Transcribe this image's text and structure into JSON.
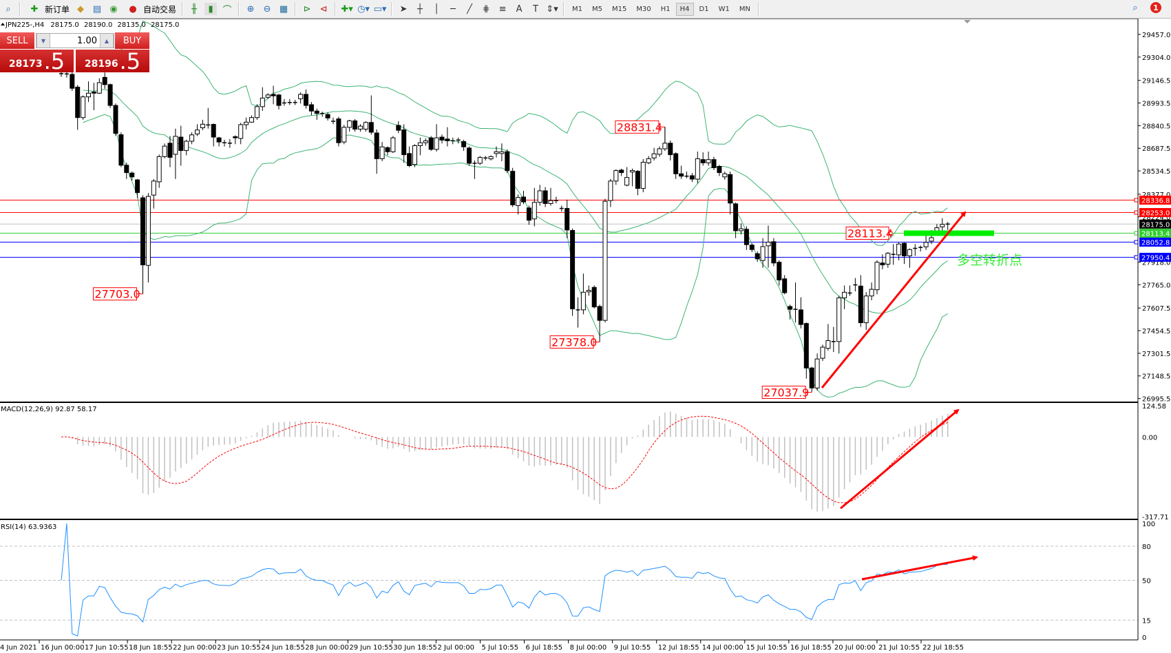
{
  "toolbar": {
    "new_order": "新订单",
    "auto_trading": "自动交易",
    "timeframes": [
      "M1",
      "M5",
      "M15",
      "M30",
      "H1",
      "H4",
      "D1",
      "W1",
      "MN"
    ],
    "active_timeframe": "H4",
    "notification_count": "1",
    "icons": [
      "zoom-icon",
      "new-order-icon",
      "market-watch-icon",
      "navigator-icon",
      "signal-icon",
      "auto-trading-icon",
      "bar-chart-icon",
      "candlestick-icon",
      "line-chart-icon",
      "zoom-in-icon",
      "zoom-out-icon",
      "tile-windows-icon",
      "chart-shift-icon",
      "autoscroll-icon",
      "indicators-icon",
      "periods-icon",
      "templates-icon",
      "cursor-icon",
      "crosshair-icon",
      "vertical-line-icon",
      "horizontal-line-icon",
      "trendline-icon",
      "fibonacci-icon",
      "fibo-fan-icon",
      "text-icon",
      "text-label-icon",
      "arrows-icon",
      "search-icon",
      "notification-icon"
    ]
  },
  "chart": {
    "symbol": "JPN225-,H4",
    "open": "28175.0",
    "high": "28190.0",
    "low": "28135.0",
    "close": "28175.0"
  },
  "trade_panel": {
    "sell_label": "SELL",
    "buy_label": "BUY",
    "volume": "1.00",
    "sell_price_main": "28173",
    "sell_price_frac": ".5",
    "buy_price_main": "28196",
    "buy_price_frac": ".5"
  },
  "chart_data": {
    "type": "candlestick",
    "symbol": "JPN225-",
    "timeframe": "H4",
    "colors": {
      "bull_body": "#ffffff",
      "bear_body": "#000000",
      "bands": "#3cb371",
      "rsi": "#1e90ff",
      "macd_hist": "#c0c0c0",
      "macd_signal": "#ff0000",
      "arrow": "#ff0000",
      "annotation": "#ff0000"
    },
    "candles": [
      [
        29192,
        29215,
        29170,
        29187
      ],
      [
        29187,
        29230,
        29165,
        29190
      ],
      [
        29187,
        29200,
        29075,
        29093
      ],
      [
        29101,
        29115,
        28812,
        28895
      ],
      [
        28895,
        29045,
        28880,
        29035
      ],
      [
        29035,
        29140,
        29000,
        29060
      ],
      [
        29068,
        29130,
        28945,
        29060
      ],
      [
        29060,
        29160,
        29055,
        29131
      ],
      [
        29167,
        29200,
        29090,
        29118
      ],
      [
        29118,
        29125,
        28960,
        28977
      ],
      [
        28977,
        28990,
        28770,
        28788
      ],
      [
        28779,
        28795,
        28560,
        28573
      ],
      [
        28573,
        28590,
        28480,
        28523
      ],
      [
        28520,
        28530,
        28470,
        28494
      ],
      [
        28474,
        28480,
        28350,
        28388
      ],
      [
        28353,
        28370,
        27703,
        27899
      ],
      [
        27896,
        28385,
        27780,
        28362
      ],
      [
        28371,
        28480,
        28280,
        28466
      ],
      [
        28461,
        28645,
        28420,
        28631
      ],
      [
        28631,
        28720,
        28620,
        28702
      ],
      [
        28722,
        28770,
        28560,
        28626
      ],
      [
        28647,
        28820,
        28480,
        28768
      ],
      [
        28763,
        28840,
        28570,
        28672
      ],
      [
        28672,
        28745,
        28640,
        28735
      ],
      [
        28735,
        28795,
        28715,
        28778
      ],
      [
        28784,
        28850,
        28770,
        28811
      ],
      [
        28826,
        28880,
        28810,
        28850
      ],
      [
        28845,
        28960,
        28820,
        28845
      ],
      [
        28849,
        28855,
        28700,
        28763
      ],
      [
        28758,
        28765,
        28700,
        28730
      ],
      [
        28725,
        28745,
        28700,
        28725
      ],
      [
        28722,
        28750,
        28690,
        28722
      ],
      [
        28766,
        28775,
        28715,
        28758
      ],
      [
        28754,
        28860,
        28715,
        28847
      ],
      [
        28847,
        28895,
        28815,
        28864
      ],
      [
        28864,
        28910,
        28860,
        28895
      ],
      [
        28895,
        28985,
        28880,
        28969
      ],
      [
        28969,
        29100,
        28940,
        29027
      ],
      [
        29032,
        29060,
        29020,
        29048
      ],
      [
        29052,
        29110,
        28985,
        29042
      ],
      [
        29048,
        29055,
        28950,
        28977
      ],
      [
        28994,
        29020,
        28975,
        28994
      ],
      [
        28997,
        29020,
        28980,
        28997
      ],
      [
        28997,
        29015,
        28980,
        28997
      ],
      [
        29022,
        29065,
        28990,
        29052
      ],
      [
        29052,
        29085,
        28955,
        28977
      ],
      [
        28982,
        29000,
        28910,
        28939
      ],
      [
        28939,
        28955,
        28880,
        28923
      ],
      [
        28923,
        28935,
        28900,
        28923
      ],
      [
        28916,
        28930,
        28875,
        28892
      ],
      [
        28870,
        28895,
        28850,
        28870
      ],
      [
        28886,
        28900,
        28700,
        28725
      ],
      [
        28730,
        28845,
        28715,
        28829
      ],
      [
        28829,
        28880,
        28800,
        28873
      ],
      [
        28873,
        28885,
        28800,
        28817
      ],
      [
        28817,
        28850,
        28800,
        28837
      ],
      [
        28817,
        28870,
        28800,
        28862
      ],
      [
        28862,
        29045,
        28780,
        28796
      ],
      [
        28791,
        28815,
        28515,
        28617
      ],
      [
        28617,
        28730,
        28600,
        28697
      ],
      [
        28692,
        28700,
        28640,
        28664
      ],
      [
        28664,
        28770,
        28655,
        28758
      ],
      [
        28842,
        28870,
        28790,
        28809
      ],
      [
        28812,
        28850,
        28590,
        28644
      ],
      [
        28652,
        28700,
        28560,
        28570
      ],
      [
        28578,
        28715,
        28560,
        28705
      ],
      [
        28705,
        28760,
        28640,
        28725
      ],
      [
        28725,
        28755,
        28705,
        28738
      ],
      [
        28758,
        28770,
        28670,
        28680
      ],
      [
        28680,
        28850,
        28665,
        28758
      ],
      [
        28763,
        28780,
        28720,
        28743
      ],
      [
        28750,
        28830,
        28700,
        28738
      ],
      [
        28738,
        28760,
        28715,
        28738
      ],
      [
        28743,
        28760,
        28720,
        28738
      ],
      [
        28733,
        28745,
        28670,
        28697
      ],
      [
        28689,
        28700,
        28570,
        28586
      ],
      [
        28586,
        28605,
        28480,
        28586
      ],
      [
        28586,
        28635,
        28575,
        28626
      ],
      [
        28622,
        28635,
        28605,
        28622
      ],
      [
        28616,
        28640,
        28605,
        28631
      ],
      [
        28652,
        28700,
        28625,
        28664
      ],
      [
        28652,
        28720,
        28600,
        28664
      ],
      [
        28664,
        28680,
        28520,
        28536
      ],
      [
        28532,
        28555,
        28290,
        28305
      ],
      [
        28300,
        28375,
        28240,
        28355
      ],
      [
        28358,
        28400,
        28310,
        28325
      ],
      [
        28284,
        28300,
        28170,
        28201
      ],
      [
        28210,
        28420,
        28160,
        28322
      ],
      [
        28322,
        28440,
        28300,
        28400
      ],
      [
        28400,
        28425,
        28290,
        28314
      ],
      [
        28314,
        28420,
        28300,
        28334
      ],
      [
        28334,
        28360,
        28315,
        28334
      ],
      [
        28281,
        28300,
        28260,
        28281
      ],
      [
        28281,
        28340,
        28080,
        28135
      ],
      [
        28132,
        28145,
        27555,
        27602
      ],
      [
        27595,
        27680,
        27475,
        27595
      ],
      [
        27595,
        27840,
        27565,
        27714
      ],
      [
        27717,
        27760,
        27690,
        27727
      ],
      [
        27747,
        27760,
        27605,
        27615
      ],
      [
        27618,
        27630,
        27378,
        27524
      ],
      [
        27524,
        28345,
        27510,
        28329
      ],
      [
        28334,
        28480,
        28290,
        28466
      ],
      [
        28466,
        28545,
        28440,
        28537
      ],
      [
        28540,
        28550,
        28500,
        28523
      ],
      [
        28438,
        28560,
        28430,
        28490
      ],
      [
        28527,
        28550,
        28430,
        28537
      ],
      [
        28532,
        28540,
        28370,
        28416
      ],
      [
        28416,
        28615,
        28390,
        28593
      ],
      [
        28589,
        28635,
        28580,
        28617
      ],
      [
        28622,
        28690,
        28605,
        28650
      ],
      [
        28647,
        28700,
        28630,
        28684
      ],
      [
        28684,
        28831.4,
        28670,
        28722
      ],
      [
        28722,
        28740,
        28605,
        28644
      ],
      [
        28651,
        28660,
        28480,
        28515
      ],
      [
        28515,
        28570,
        28480,
        28499
      ],
      [
        28499,
        28530,
        28485,
        28499
      ],
      [
        28502,
        28520,
        28460,
        28479
      ],
      [
        28479,
        28665,
        28450,
        28617
      ],
      [
        28611,
        28660,
        28570,
        28589
      ],
      [
        28589,
        28665,
        28570,
        28611
      ],
      [
        28611,
        28630,
        28540,
        28556
      ],
      [
        28565,
        28575,
        28500,
        28523
      ],
      [
        28494,
        28530,
        28475,
        28515
      ],
      [
        28510,
        28530,
        28240,
        28317
      ],
      [
        28312,
        28320,
        28080,
        28130
      ],
      [
        28130,
        28180,
        28105,
        28143
      ],
      [
        28140,
        28160,
        28000,
        28036
      ],
      [
        28033,
        28045,
        27985,
        28003
      ],
      [
        27975,
        27990,
        27920,
        27940
      ],
      [
        27929,
        28080,
        27880,
        28023
      ],
      [
        28028,
        28165,
        27880,
        28053
      ],
      [
        28056,
        28080,
        27890,
        27912
      ],
      [
        27917,
        27930,
        27760,
        27797
      ],
      [
        27805,
        27830,
        27700,
        27711
      ],
      [
        27618,
        27630,
        27530,
        27599
      ],
      [
        27599,
        27780,
        27510,
        27599
      ],
      [
        27595,
        27680,
        27470,
        27496
      ],
      [
        27503,
        27510,
        27130,
        27202
      ],
      [
        27202,
        27210,
        27037.9,
        27067
      ],
      [
        27067,
        27300,
        27050,
        27263
      ],
      [
        27268,
        27360,
        27250,
        27343
      ],
      [
        27335,
        27500,
        27320,
        27387
      ],
      [
        27381,
        27480,
        27310,
        27381
      ],
      [
        27381,
        27690,
        27300,
        27676
      ],
      [
        27676,
        27760,
        27600,
        27714
      ],
      [
        27709,
        27760,
        27690,
        27709
      ],
      [
        27764,
        27810,
        27720,
        27764
      ],
      [
        27756,
        27830,
        27480,
        27508
      ],
      [
        27508,
        27715,
        27460,
        27689
      ],
      [
        27689,
        27780,
        27660,
        27734
      ],
      [
        27731,
        27930,
        27700,
        27917
      ],
      [
        27912,
        27970,
        27870,
        27899
      ],
      [
        27904,
        27985,
        27880,
        27978
      ],
      [
        27970,
        28040,
        27900,
        27970
      ],
      [
        27967,
        28050,
        27930,
        28040
      ],
      [
        28045,
        28050,
        27905,
        27960
      ],
      [
        27960,
        28010,
        27880,
        28003
      ],
      [
        28011,
        28040,
        27960,
        28011
      ],
      [
        28017,
        28030,
        27990,
        28017
      ],
      [
        28021,
        28095,
        28000,
        28052
      ],
      [
        28060,
        28135,
        28040,
        28083
      ],
      [
        28129,
        28175,
        28120,
        28150
      ],
      [
        28156,
        28215,
        28120,
        28173
      ],
      [
        28175,
        28190,
        28135,
        28175
      ]
    ],
    "price_axis": {
      "ylim": [
        26995.5,
        29457.0
      ],
      "ticks": [
        "29457.0",
        "29304.0",
        "29146.5",
        "28993.5",
        "28840.5",
        "28687.5",
        "28534.5",
        "28377.0",
        "28224.0",
        "27918.0",
        "27765.0",
        "27607.5",
        "27454.5",
        "27301.5",
        "27148.5",
        "26995.5"
      ]
    },
    "x_ticks": [
      "4 Jun 2021",
      "16 Jun 00:00",
      "17 Jun 10:55",
      "18 Jun 18:55",
      "22 Jun 00:00",
      "23 Jun 10:55",
      "24 Jun 18:55",
      "28 Jun 00:00",
      "29 Jun 10:55",
      "30 Jun 18:55",
      "2 Jul 00:00",
      "5 Jul 10:55",
      "6 Jul 18:55",
      "8 Jul 00:00",
      "9 Jul 10:55",
      "12 Jul 18:55",
      "14 Jul 00:00",
      "15 Jul 10:55",
      "16 Jul 18:55",
      "20 Jul 00:00",
      "21 Jul 10:55",
      "22 Jul 18:55"
    ],
    "levels": [
      {
        "price": "28336.8",
        "color": "#ff0000",
        "text_color": "#ffffff"
      },
      {
        "price": "28253.0",
        "color": "#ff0000",
        "text_color": "#ffffff"
      },
      {
        "price": "28175.0",
        "color": "#000000",
        "text_color": "#ffffff",
        "line": "#c0c0c0"
      },
      {
        "price": "28113.4",
        "color": "#32cd32",
        "text_color": "#ffffff"
      },
      {
        "price": "28052.8",
        "color": "#0000ff",
        "text_color": "#ffffff"
      },
      {
        "price": "27950.4",
        "color": "#0000ff",
        "text_color": "#ffffff"
      }
    ],
    "price_labels": [
      {
        "text": "27703.0",
        "candle": 15,
        "at": "low"
      },
      {
        "text": "27378.0",
        "candle": 99,
        "at": "low"
      },
      {
        "text": "28831.4",
        "candle": 111,
        "at": "high"
      },
      {
        "text": "27037.9",
        "candle": 138,
        "at": "low"
      }
    ],
    "level_label": "28113.4",
    "zone_text": "多空转折点",
    "indicators": {
      "bollinger": {
        "period": 20,
        "deviation": 2
      },
      "macd": {
        "label": "MACD(12,26,9) 92.87 58.17",
        "fast": 12,
        "slow": 26,
        "signal": 9,
        "ylim": [
          -317.71,
          124.58
        ],
        "ticks": [
          "124.58",
          "0.00",
          "-317.71"
        ]
      },
      "rsi": {
        "label": "RSI(14) 63.9363",
        "period": 14,
        "ylim": [
          0,
          100
        ],
        "levels": [
          80,
          50,
          15
        ],
        "ticks": [
          "100",
          "80",
          "50",
          "15",
          "0"
        ]
      }
    }
  }
}
